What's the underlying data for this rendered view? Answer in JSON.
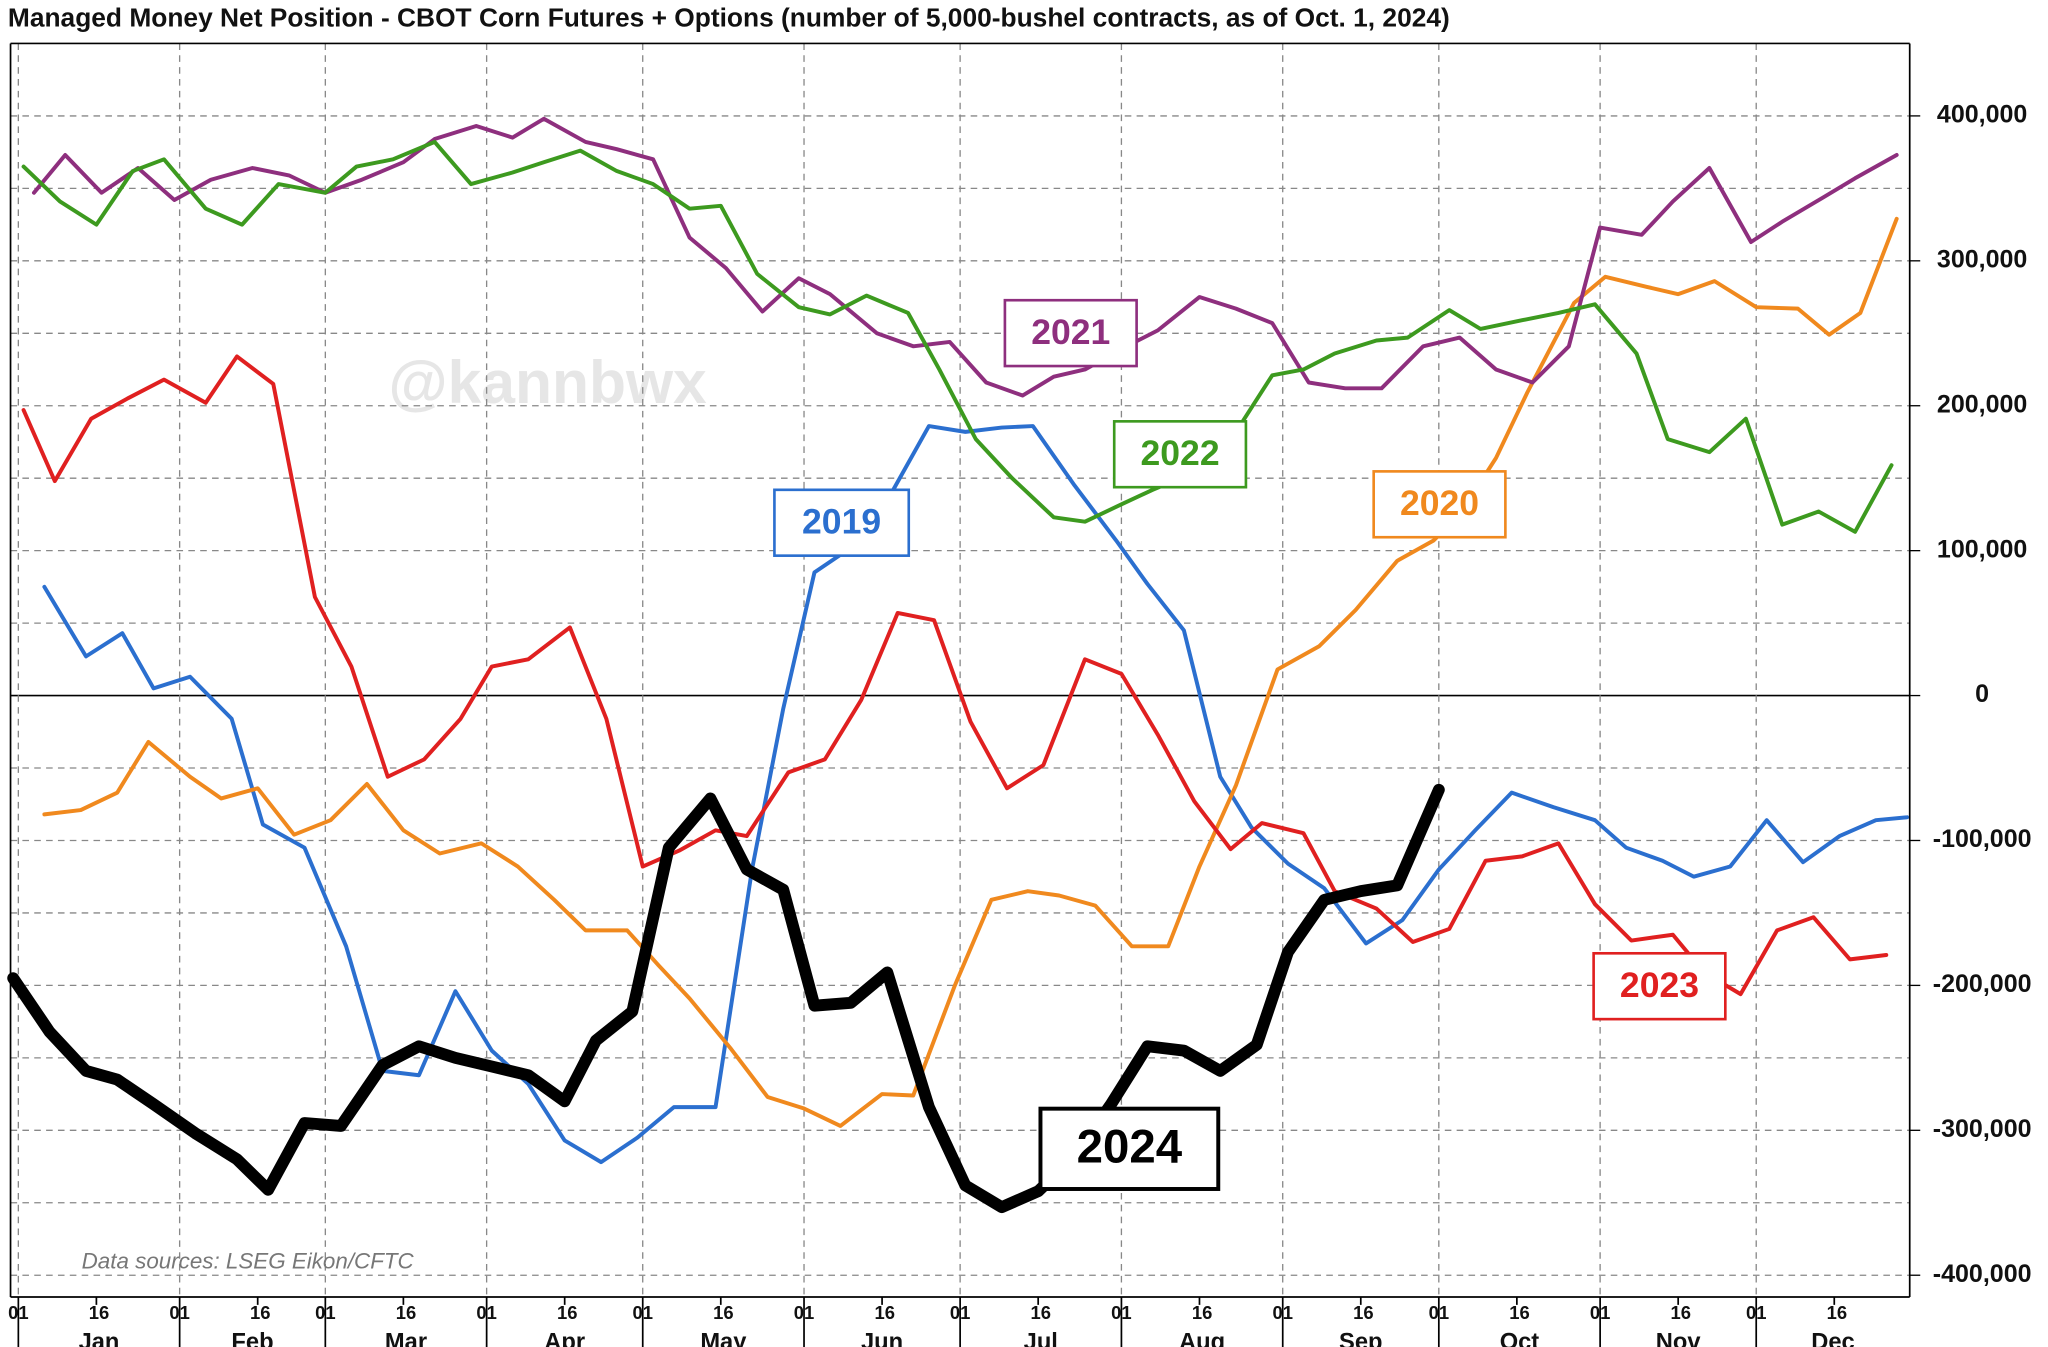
{
  "chart_data": {
    "type": "line",
    "title": "Managed Money Net Position - CBOT Corn Futures + Options (number of 5,000-bushel contracts, as of Oct. 1, 2024)",
    "watermark": "@kannbwx",
    "source": "Data sources: LSEG Eikon/CFTC",
    "months": [
      "Jan",
      "Feb",
      "Mar",
      "Apr",
      "May",
      "Jun",
      "Jul",
      "Aug",
      "Sep",
      "Oct",
      "Nov",
      "Dec"
    ],
    "xlim": [
      -0.5,
      364.5
    ],
    "xticks": [
      {
        "value": 1,
        "label": "01"
      },
      {
        "value": 16,
        "label": "16"
      },
      {
        "value": 32,
        "label": "01"
      },
      {
        "value": 47,
        "label": "16"
      },
      {
        "value": 60,
        "label": "01"
      },
      {
        "value": 75,
        "label": "16"
      },
      {
        "value": 91,
        "label": "01"
      },
      {
        "value": 106,
        "label": "16"
      },
      {
        "value": 121,
        "label": "01"
      },
      {
        "value": 136,
        "label": "16"
      },
      {
        "value": 152,
        "label": "01"
      },
      {
        "value": 167,
        "label": "16"
      },
      {
        "value": 182,
        "label": "01"
      },
      {
        "value": 197,
        "label": "16"
      },
      {
        "value": 213,
        "label": "01"
      },
      {
        "value": 228,
        "label": "16"
      },
      {
        "value": 244,
        "label": "01"
      },
      {
        "value": 259,
        "label": "16"
      },
      {
        "value": 274,
        "label": "01"
      },
      {
        "value": 289,
        "label": "16"
      },
      {
        "value": 305,
        "label": "01"
      },
      {
        "value": 320,
        "label": "16"
      },
      {
        "value": 335,
        "label": "01"
      },
      {
        "value": 350,
        "label": "16"
      }
    ],
    "ylim": [
      -415000,
      450000
    ],
    "yticks": [
      {
        "value": 400000,
        "label": "400,000"
      },
      {
        "value": 300000,
        "label": "300,000"
      },
      {
        "value": 200000,
        "label": "200,000"
      },
      {
        "value": 100000,
        "label": "100,000"
      },
      0,
      {
        "value": -100000,
        "label": "-100,000"
      },
      {
        "value": -200000,
        "label": "-200,000"
      },
      {
        "value": -300000,
        "label": "-300,000"
      },
      {
        "value": -400000,
        "label": "-400,000"
      }
    ],
    "ygrid": [
      400000,
      350000,
      300000,
      250000,
      200000,
      150000,
      100000,
      50000,
      -50000,
      -100000,
      -150000,
      -200000,
      -250000,
      -300000,
      -350000,
      -400000
    ],
    "grid": true,
    "series": [
      {
        "name": "2019",
        "color": "#2b6fcf",
        "x": [
          6,
          14,
          21,
          27,
          34,
          42,
          48,
          56,
          64,
          71,
          78,
          85,
          92,
          99,
          106,
          113,
          120,
          127,
          135,
          142,
          148,
          154,
          161,
          169,
          176,
          183,
          190,
          196,
          204,
          212,
          218,
          225,
          232,
          238,
          245,
          252,
          260,
          267,
          274,
          281,
          288,
          296,
          304,
          310,
          317,
          323,
          330,
          337,
          344,
          351,
          358,
          364
        ],
        "values": [
          75000,
          27000,
          43000,
          5000,
          13000,
          -16000,
          -89000,
          -105000,
          -173000,
          -259000,
          -262000,
          -204000,
          -245000,
          -268000,
          -307000,
          -322000,
          -305000,
          -284000,
          -284000,
          -120000,
          -9000,
          85000,
          102000,
          141000,
          186000,
          182000,
          185000,
          186000,
          145000,
          107000,
          77000,
          45000,
          -56000,
          -91000,
          -116000,
          -133000,
          -171000,
          -155000,
          -120000,
          -93000,
          -67000,
          -77000,
          -86000,
          -105000,
          -114000,
          -125000,
          -118000,
          -86000,
          -115000,
          -97000,
          -86000,
          -84000
        ]
      },
      {
        "name": "2020",
        "color": "#f0891e",
        "x": [
          6,
          13,
          20,
          26,
          34,
          40,
          47,
          54,
          61,
          68,
          75,
          82,
          90,
          97,
          104,
          110,
          118,
          124,
          130,
          138,
          145,
          152,
          159,
          167,
          173,
          181,
          188,
          195,
          201,
          208,
          215,
          222,
          228,
          235,
          243,
          251,
          258,
          266,
          273,
          278,
          285,
          291,
          300,
          306,
          314,
          320,
          327,
          335,
          343,
          349,
          355,
          362
        ],
        "values": [
          -82000,
          -79000,
          -67000,
          -32000,
          -56000,
          -71000,
          -64000,
          -96000,
          -86000,
          -61000,
          -93000,
          -109000,
          -102000,
          -118000,
          -141000,
          -162000,
          -162000,
          -186000,
          -209000,
          -244000,
          -277000,
          -285000,
          -297000,
          -275000,
          -276000,
          -200000,
          -141000,
          -135000,
          -138000,
          -145000,
          -173000,
          -173000,
          -118000,
          -62000,
          18000,
          34000,
          59000,
          93000,
          107000,
          125000,
          164000,
          209000,
          271000,
          289000,
          282000,
          277000,
          286000,
          268000,
          267000,
          249000,
          264000,
          329000
        ]
      },
      {
        "name": "2021",
        "color": "#8e2f7e",
        "x": [
          4,
          10,
          17,
          24,
          31,
          38,
          46,
          53,
          60,
          67,
          75,
          81,
          89,
          96,
          102,
          110,
          116,
          123,
          130,
          137,
          144,
          151,
          157,
          166,
          173,
          180,
          187,
          194,
          200,
          206,
          214,
          220,
          228,
          235,
          242,
          249,
          256,
          263,
          271,
          278,
          285,
          292,
          299,
          305,
          313,
          319,
          326,
          334,
          340,
          348,
          354,
          362
        ],
        "values": [
          347000,
          373000,
          347000,
          364000,
          342000,
          356000,
          364000,
          359000,
          347000,
          356000,
          368000,
          384000,
          393000,
          385000,
          398000,
          382000,
          377000,
          370000,
          316000,
          295000,
          265000,
          288000,
          277000,
          250000,
          241000,
          244000,
          216000,
          207000,
          220000,
          225000,
          241000,
          252000,
          275000,
          267000,
          257000,
          216000,
          212000,
          212000,
          241000,
          247000,
          225000,
          216000,
          241000,
          323000,
          318000,
          341000,
          364000,
          313000,
          327000,
          344000,
          357000,
          373000
        ]
      },
      {
        "name": "2022",
        "color": "#3d9a1f",
        "x": [
          2,
          9,
          16,
          23,
          29,
          37,
          44,
          51,
          60,
          66,
          73,
          81,
          88,
          96,
          102,
          109,
          116,
          123,
          130,
          136,
          143,
          151,
          157,
          164,
          172,
          178,
          185,
          192,
          200,
          206,
          213,
          219,
          227,
          235,
          242,
          248,
          254,
          262,
          268,
          276,
          282,
          290,
          297,
          304,
          312,
          318,
          326,
          333,
          340,
          347,
          354,
          361
        ],
        "values": [
          365000,
          341000,
          325000,
          362000,
          370000,
          336000,
          325000,
          353000,
          347000,
          365000,
          370000,
          382000,
          353000,
          361000,
          368000,
          376000,
          362000,
          353000,
          336000,
          338000,
          291000,
          268000,
          263000,
          276000,
          264000,
          225000,
          177000,
          150000,
          123000,
          120000,
          132000,
          142000,
          154000,
          182000,
          221000,
          225000,
          236000,
          245000,
          247000,
          266000,
          253000,
          259000,
          264000,
          270000,
          236000,
          177000,
          168000,
          191000,
          118000,
          127000,
          113000,
          159000
        ]
      },
      {
        "name": "2023",
        "color": "#e02020",
        "x": [
          2,
          8,
          15,
          22,
          29,
          37,
          43,
          50,
          58,
          65,
          72,
          79,
          86,
          92,
          99,
          107,
          114,
          121,
          128,
          135,
          141,
          149,
          156,
          163,
          170,
          177,
          184,
          191,
          198,
          206,
          213,
          220,
          227,
          234,
          240,
          248,
          254,
          262,
          269,
          276,
          283,
          290,
          297,
          304,
          311,
          319,
          325,
          332,
          339,
          346,
          353,
          360
        ],
        "values": [
          197000,
          148000,
          191000,
          205000,
          218000,
          202000,
          234000,
          215000,
          68000,
          20000,
          -56000,
          -44000,
          -16000,
          20000,
          25000,
          47000,
          -16000,
          -118000,
          -107000,
          -93000,
          -97000,
          -53000,
          -44000,
          -3000,
          57000,
          52000,
          -18000,
          -64000,
          -48000,
          25000,
          15000,
          -27000,
          -73000,
          -106000,
          -88000,
          -95000,
          -135000,
          -147000,
          -170000,
          -161000,
          -114000,
          -111000,
          -102000,
          -144000,
          -169000,
          -165000,
          -191000,
          -206000,
          -162000,
          -153000,
          -182000,
          -179000
        ]
      },
      {
        "name": "2024",
        "color": "#000000",
        "x": [
          0,
          7,
          14,
          20,
          27,
          35,
          43,
          49,
          56,
          63,
          71,
          78,
          85,
          92,
          99,
          106,
          112,
          119,
          126,
          134,
          141,
          148,
          154,
          161,
          168,
          176,
          183,
          190,
          197,
          204,
          211,
          218,
          225,
          232,
          239,
          245,
          252,
          259,
          266,
          274
        ],
        "values": [
          -195000,
          -232000,
          -259000,
          -265000,
          -282000,
          -302000,
          -320000,
          -341000,
          -295000,
          -297000,
          -255000,
          -242000,
          -250000,
          -256000,
          -262000,
          -280000,
          -238000,
          -218000,
          -105000,
          -71000,
          -120000,
          -134000,
          -214000,
          -212000,
          -191000,
          -284000,
          -338000,
          -353000,
          -342000,
          -318000,
          -282000,
          -242000,
          -245000,
          -259000,
          -241000,
          -177000,
          -141000,
          -135000,
          -131000,
          -65000
        ]
      }
    ]
  }
}
